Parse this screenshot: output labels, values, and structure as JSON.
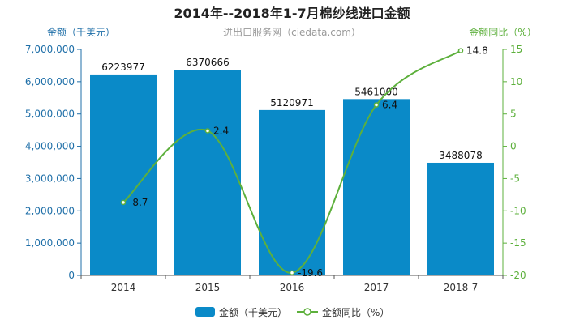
{
  "chart_data": {
    "type": "bar",
    "title": "2014年--2018年1-7月棉纱线进口金额",
    "source": "进出口服务网（ciedata.com）",
    "categories": [
      "2014",
      "2015",
      "2016",
      "2017",
      "2018-7"
    ],
    "series": [
      {
        "name": "金额（千美元）",
        "type": "bar",
        "axis": "left",
        "values": [
          6223977,
          6370666,
          5120971,
          5461000,
          3488078
        ],
        "labels": [
          "6223977",
          "6370666",
          "5120971",
          "5461000",
          "3488078"
        ]
      },
      {
        "name": "金额同比（%）",
        "type": "line",
        "axis": "right",
        "values": [
          -8.7,
          2.4,
          -19.6,
          6.4,
          14.8
        ],
        "labels": [
          "-8.7",
          "2.4",
          "-19.6",
          "6.4",
          "14.8"
        ]
      }
    ],
    "ylabel_left": "金额（千美元）",
    "ylabel_right": "金额同比（%）",
    "ylim_left": [
      0,
      7000000
    ],
    "yticks_left": [
      "0",
      "1,000,000",
      "2,000,000",
      "3,000,000",
      "4,000,000",
      "5,000,000",
      "6,000,000",
      "7,000,000"
    ],
    "ylim_right": [
      -20,
      15
    ],
    "yticks_right": [
      "-20",
      "-15",
      "-10",
      "-5",
      "0",
      "5",
      "10",
      "15"
    ],
    "legend_position": "bottom",
    "grid": false,
    "colors": {
      "bar": "#0a8ac8",
      "line": "#5db03c",
      "left_axis": "#1f6fa8",
      "right_axis": "#5db03c"
    }
  }
}
